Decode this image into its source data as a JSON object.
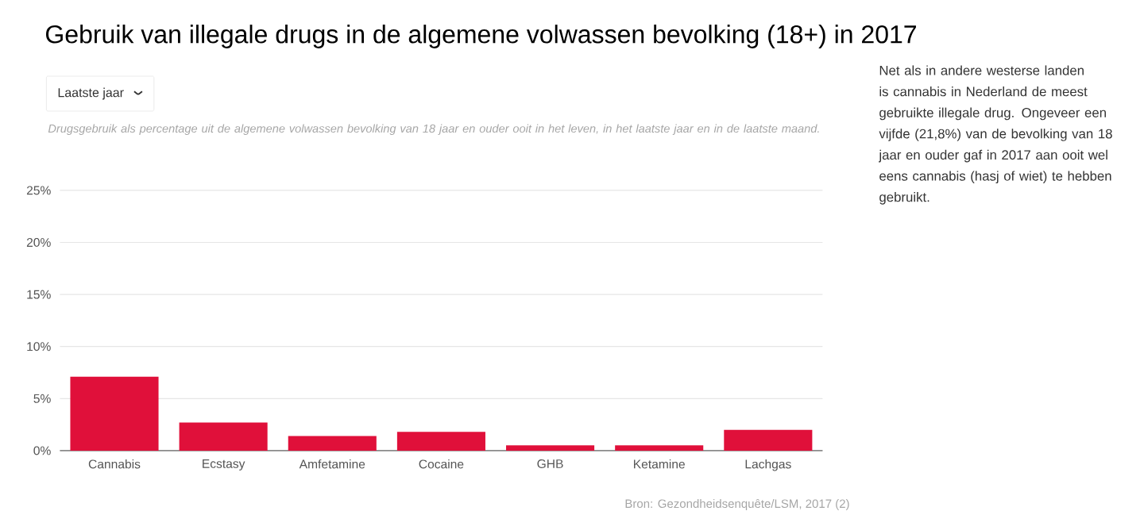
{
  "chart_data": {
    "type": "bar",
    "title": "Gebruik van illegale drugs in de algemene volwassen bevolking (18+) in 2017",
    "subtitle": "Drugsgebruik als percentage uit de algemene volwassen bevolking van 18 jaar en ouder ooit in het leven, in het laatste jaar en in de laatste maand.",
    "categories": [
      "Cannabis",
      "Ecstasy",
      "Amfetamine",
      "Cocaine",
      "GHB",
      "Ketamine",
      "Lachgas"
    ],
    "values": [
      7.1,
      2.7,
      1.4,
      1.8,
      0.5,
      0.5,
      2.0
    ],
    "color": "#e0103a",
    "ylim": [
      0,
      25
    ],
    "yticks": [
      {
        "value": 0,
        "label": "0%"
      },
      {
        "value": 5,
        "label": "5%"
      },
      {
        "value": 10,
        "label": "10%"
      },
      {
        "value": 15,
        "label": "15%"
      },
      {
        "value": 20,
        "label": "20%"
      },
      {
        "value": 25,
        "label": "25%"
      }
    ],
    "grid": "y",
    "annotations": [
      "Laatste jaar",
      "Net als in andere westerse landen is cannabis in Nederland de meest gebruikte illegale drug. Ongeveer een vijfde (21,8%) van de bevolking van 18 jaar en ouder gaf in 2017 aan ooit wel eens cannabis (hasj of wiet) te hebben gebruikt.",
      "Bron: Gezondheidsenquête/LSM, 2017 (2)"
    ]
  }
}
